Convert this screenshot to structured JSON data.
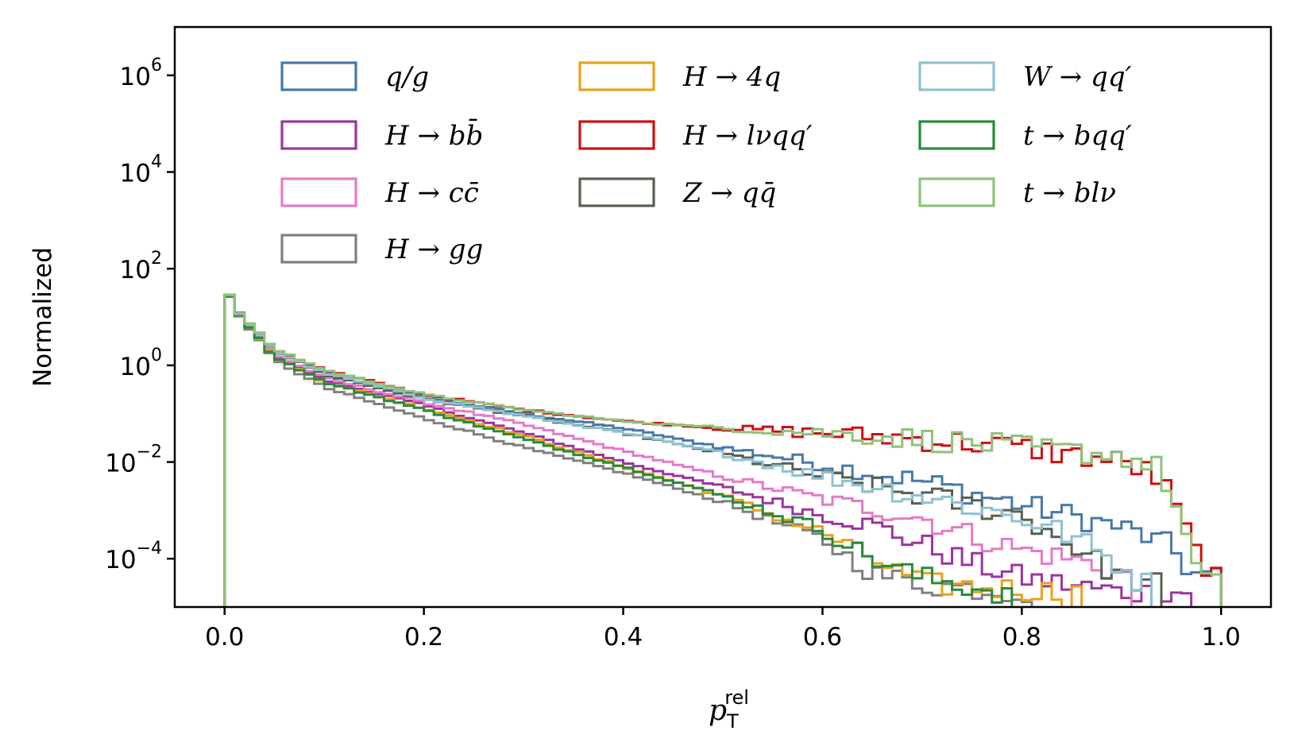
{
  "chart_data": {
    "type": "histogram-step",
    "xlabel": {
      "main": "p",
      "sub": "T",
      "sup": "rel"
    },
    "ylabel": "Normalized",
    "yscale": "log",
    "xlim": [
      -0.05,
      1.05
    ],
    "ylim_log10": [
      -5,
      7
    ],
    "xticks": [
      0.0,
      0.2,
      0.4,
      0.6,
      0.8,
      1.0
    ],
    "xtick_labels": [
      "0.0",
      "0.2",
      "0.4",
      "0.6",
      "0.8",
      "1.0"
    ],
    "yticks_exp": [
      6,
      4,
      2,
      0,
      -2,
      -4
    ],
    "ytick_labels": [
      {
        "base": "10",
        "exp": "6"
      },
      {
        "base": "10",
        "exp": "4"
      },
      {
        "base": "10",
        "exp": "2"
      },
      {
        "base": "10",
        "exp": "0"
      },
      {
        "base": "10",
        "exp": "−2"
      },
      {
        "base": "10",
        "exp": "−4"
      }
    ],
    "legend_placement": "top",
    "series": [
      {
        "name": "q/g",
        "color": "#4878a8",
        "points": [
          [
            0.0,
            50
          ],
          [
            0.01,
            15
          ],
          [
            0.05,
            2
          ],
          [
            0.1,
            0.7
          ],
          [
            0.2,
            0.22
          ],
          [
            0.3,
            0.1
          ],
          [
            0.4,
            0.05
          ],
          [
            0.5,
            0.02
          ],
          [
            0.6,
            0.009
          ],
          [
            0.7,
            0.004
          ],
          [
            0.8,
            0.0013
          ],
          [
            0.9,
            0.00045
          ],
          [
            0.95,
            0.00018
          ],
          [
            0.97,
            5e-05
          ],
          [
            1.0,
            4e-05
          ]
        ]
      },
      {
        "name": "H → bb̄",
        "color": "#9b35a0",
        "points": [
          [
            0.0,
            50
          ],
          [
            0.01,
            15
          ],
          [
            0.05,
            1.6
          ],
          [
            0.1,
            0.5
          ],
          [
            0.2,
            0.15
          ],
          [
            0.3,
            0.04
          ],
          [
            0.4,
            0.01
          ],
          [
            0.5,
            0.003
          ],
          [
            0.6,
            0.0008
          ],
          [
            0.65,
            0.0005
          ],
          [
            0.7,
            0.0002
          ],
          [
            0.75,
            8e-05
          ],
          [
            0.8,
            4e-05
          ],
          [
            0.9,
            2e-05
          ],
          [
            0.96,
            2e-05
          ]
        ]
      },
      {
        "name": "H → cc̄",
        "color": "#e47bc7",
        "points": [
          [
            0.0,
            50
          ],
          [
            0.01,
            15
          ],
          [
            0.05,
            1.7
          ],
          [
            0.1,
            0.55
          ],
          [
            0.2,
            0.17
          ],
          [
            0.3,
            0.06
          ],
          [
            0.4,
            0.017
          ],
          [
            0.5,
            0.005
          ],
          [
            0.6,
            0.0017
          ],
          [
            0.7,
            0.0007
          ],
          [
            0.75,
            0.0003
          ],
          [
            0.8,
            0.00015
          ],
          [
            0.85,
            0.0001
          ],
          [
            0.9,
            5e-05
          ]
        ]
      },
      {
        "name": "H → gg",
        "color": "#808080",
        "points": [
          [
            0.0,
            50
          ],
          [
            0.01,
            14
          ],
          [
            0.05,
            1.3
          ],
          [
            0.1,
            0.35
          ],
          [
            0.2,
            0.08
          ],
          [
            0.3,
            0.02
          ],
          [
            0.4,
            0.006
          ],
          [
            0.5,
            0.0015
          ],
          [
            0.55,
            0.0006
          ],
          [
            0.6,
            0.00025
          ],
          [
            0.65,
            5e-05
          ],
          [
            0.7,
            3e-05
          ],
          [
            0.8,
            2e-05
          ]
        ]
      },
      {
        "name": "H → 4q",
        "color": "#e8a21c",
        "points": [
          [
            0.0,
            50
          ],
          [
            0.01,
            15
          ],
          [
            0.05,
            1.5
          ],
          [
            0.1,
            0.45
          ],
          [
            0.2,
            0.13
          ],
          [
            0.3,
            0.035
          ],
          [
            0.4,
            0.008
          ],
          [
            0.5,
            0.002
          ],
          [
            0.55,
            0.0008
          ],
          [
            0.6,
            0.00035
          ],
          [
            0.65,
            0.0001
          ],
          [
            0.7,
            3e-05
          ],
          [
            0.85,
            2e-05
          ]
        ]
      },
      {
        "name": "H → lνqq′",
        "color": "#cc1111",
        "points": [
          [
            0.0,
            50
          ],
          [
            0.01,
            15
          ],
          [
            0.05,
            2.2
          ],
          [
            0.1,
            0.8
          ],
          [
            0.2,
            0.25
          ],
          [
            0.3,
            0.12
          ],
          [
            0.4,
            0.07
          ],
          [
            0.5,
            0.05
          ],
          [
            0.6,
            0.04
          ],
          [
            0.7,
            0.03
          ],
          [
            0.8,
            0.02
          ],
          [
            0.9,
            0.01
          ],
          [
            0.93,
            0.006
          ],
          [
            0.95,
            0.002
          ],
          [
            0.97,
            0.0002
          ],
          [
            1.0,
            3e-05
          ]
        ]
      },
      {
        "name": "Z → qq̄",
        "color": "#566152",
        "points": [
          [
            0.0,
            50
          ],
          [
            0.01,
            15
          ],
          [
            0.05,
            2
          ],
          [
            0.1,
            0.65
          ],
          [
            0.2,
            0.2
          ],
          [
            0.3,
            0.09
          ],
          [
            0.4,
            0.04
          ],
          [
            0.5,
            0.015
          ],
          [
            0.6,
            0.005
          ],
          [
            0.7,
            0.002
          ],
          [
            0.8,
            0.0008
          ],
          [
            0.85,
            0.0002
          ],
          [
            0.9,
            4e-05
          ],
          [
            0.93,
            3e-05
          ]
        ]
      },
      {
        "name": "W → qq′",
        "color": "#8fc1d1",
        "points": [
          [
            0.0,
            50
          ],
          [
            0.01,
            15
          ],
          [
            0.05,
            2
          ],
          [
            0.1,
            0.7
          ],
          [
            0.2,
            0.21
          ],
          [
            0.3,
            0.09
          ],
          [
            0.4,
            0.04
          ],
          [
            0.5,
            0.015
          ],
          [
            0.6,
            0.005
          ],
          [
            0.7,
            0.002
          ],
          [
            0.8,
            0.0007
          ],
          [
            0.85,
            0.0003
          ],
          [
            0.9,
            7e-05
          ],
          [
            0.92,
            3e-05
          ]
        ]
      },
      {
        "name": "t → bqq′",
        "color": "#2a8a3a",
        "points": [
          [
            0.0,
            50
          ],
          [
            0.01,
            15
          ],
          [
            0.05,
            1.5
          ],
          [
            0.1,
            0.45
          ],
          [
            0.2,
            0.12
          ],
          [
            0.3,
            0.03
          ],
          [
            0.4,
            0.008
          ],
          [
            0.5,
            0.002
          ],
          [
            0.55,
            0.0009
          ],
          [
            0.6,
            0.0004
          ],
          [
            0.65,
            0.0001
          ],
          [
            0.7,
            4e-05
          ],
          [
            0.78,
            2e-05
          ]
        ]
      },
      {
        "name": "t → blν",
        "color": "#8fc27a",
        "points": [
          [
            0.0,
            50
          ],
          [
            0.01,
            15
          ],
          [
            0.05,
            2.2
          ],
          [
            0.1,
            0.8
          ],
          [
            0.2,
            0.25
          ],
          [
            0.3,
            0.12
          ],
          [
            0.4,
            0.07
          ],
          [
            0.5,
            0.05
          ],
          [
            0.6,
            0.04
          ],
          [
            0.7,
            0.03
          ],
          [
            0.8,
            0.02
          ],
          [
            0.9,
            0.014
          ],
          [
            0.94,
            0.007
          ],
          [
            0.96,
            0.0006
          ],
          [
            0.98,
            3e-05
          ],
          [
            1.0,
            3e-05
          ]
        ]
      }
    ]
  }
}
